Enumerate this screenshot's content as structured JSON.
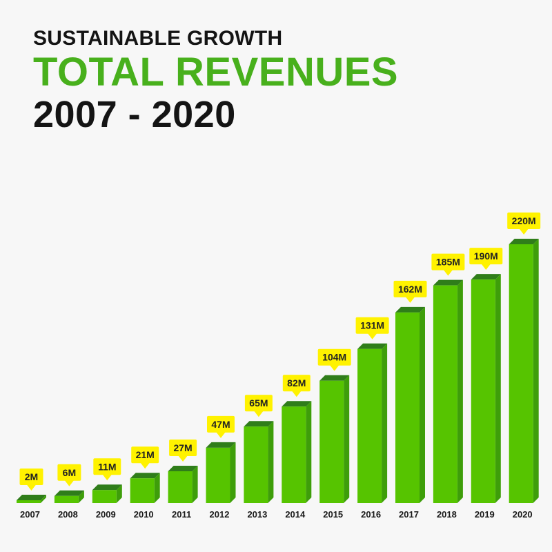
{
  "header": {
    "subtitle": "SUSTAINABLE GROWTH",
    "title": "TOTAL REVENUES",
    "period": "2007 - 2020"
  },
  "colors": {
    "bar_front": "#56c400",
    "bar_side": "#3e9e0a",
    "bar_top": "#2f7d1a",
    "label_bg": "#fff200",
    "title_green": "#48b01c"
  },
  "chart_data": {
    "type": "bar",
    "title": "TOTAL REVENUES",
    "subtitle": "SUSTAINABLE GROWTH",
    "xlabel": "",
    "ylabel": "",
    "categories": [
      "2007",
      "2008",
      "2009",
      "2010",
      "2011",
      "2012",
      "2013",
      "2014",
      "2015",
      "2016",
      "2017",
      "2018",
      "2019",
      "2020"
    ],
    "values": [
      2,
      6,
      11,
      21,
      27,
      47,
      65,
      82,
      104,
      131,
      162,
      185,
      190,
      220
    ],
    "data_labels": [
      "2M",
      "6M",
      "11M",
      "21M",
      "27M",
      "47M",
      "65M",
      "82M",
      "104M",
      "131M",
      "162M",
      "185M",
      "190M",
      "220M"
    ],
    "unit": "M",
    "ylim": [
      0,
      220
    ],
    "grid": false,
    "legend": "none"
  }
}
